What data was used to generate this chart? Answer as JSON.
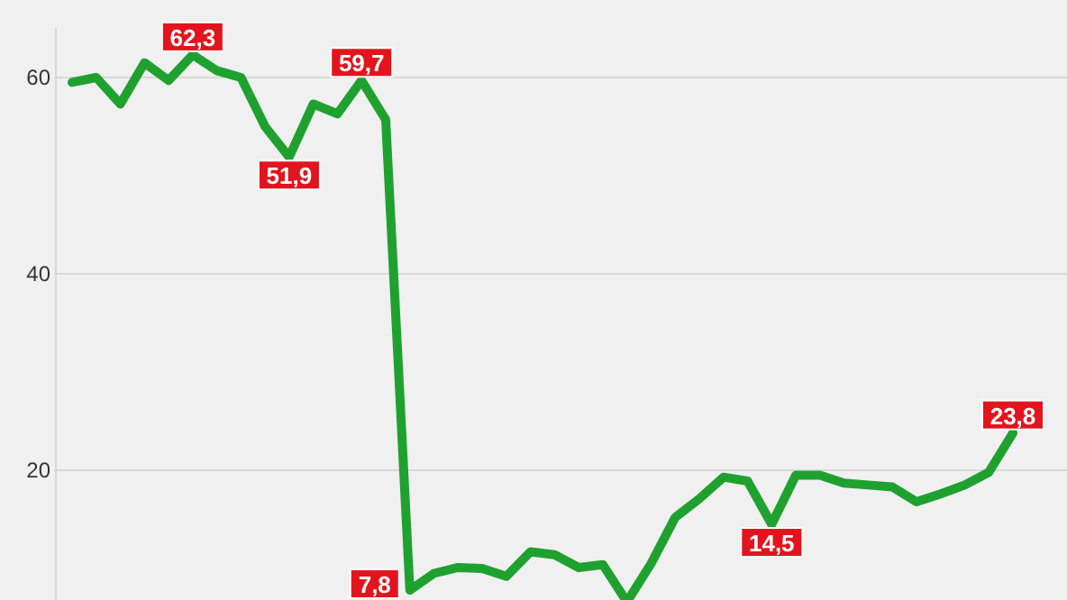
{
  "chart_data": {
    "type": "line",
    "categories": [
      null,
      null,
      null,
      null,
      null,
      null,
      null,
      null,
      null,
      null,
      null,
      null,
      null,
      null,
      null,
      null,
      null,
      null,
      null,
      null,
      null,
      null,
      null,
      null,
      null,
      null,
      null,
      null,
      null,
      null,
      null,
      null,
      null,
      null,
      null,
      null,
      null,
      null,
      null,
      null
    ],
    "series": [
      {
        "color": "#1fa12f",
        "values": [
          59.5,
          60,
          57.3,
          61.5,
          59.7,
          62.3,
          60.7,
          60,
          55,
          51.9,
          57.3,
          56.3,
          59.7,
          55.7,
          7.8,
          9.5,
          10.1,
          10,
          9.2,
          11.7,
          11.4,
          10.1,
          10.4,
          6.6,
          10.5,
          15.2,
          17.1,
          19.3,
          18.9,
          14.5,
          19.5,
          19.5,
          18.7,
          18.5,
          18.3,
          16.8,
          17.6,
          18.5,
          19.8,
          23.8
        ],
        "value_labels": [
          null,
          null,
          null,
          null,
          null,
          "62,3",
          null,
          null,
          null,
          "51,9",
          null,
          null,
          "59,7",
          null,
          "7,8",
          null,
          null,
          null,
          null,
          null,
          null,
          null,
          null,
          null,
          null,
          null,
          null,
          null,
          null,
          "14,5",
          null,
          null,
          null,
          null,
          null,
          null,
          null,
          null,
          null,
          "23,8"
        ]
      }
    ],
    "ylim": [
      6.5,
      65
    ],
    "yticks": [
      20,
      40,
      60
    ],
    "grid": "y",
    "marker": "none",
    "line_style": "solid"
  }
}
